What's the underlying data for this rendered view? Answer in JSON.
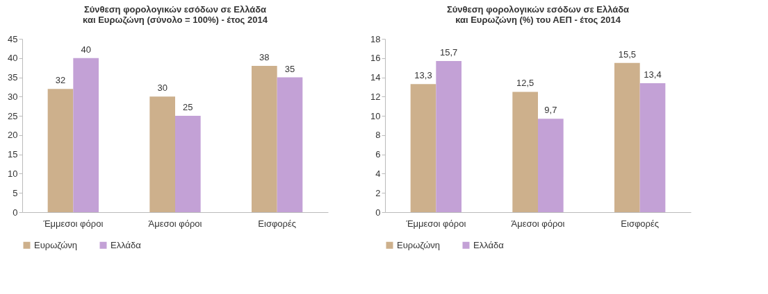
{
  "chart_data": [
    {
      "type": "bar",
      "title": "Σύνθεση  φορολογικών εσόδων σε Ελλάδα και Ευρωζώνη  (σύνολο = 100%) - έτος 2014",
      "categories": [
        "Έμμεσοι φόροι",
        "Άμεσοι φόροι",
        "Εισφορές"
      ],
      "series": [
        {
          "name": "Ευρωζώνη",
          "color": "#cdb08c",
          "values": [
            32,
            30,
            38
          ],
          "value_labels": [
            "32",
            "30",
            "38"
          ]
        },
        {
          "name": "Ελλάδα",
          "color": "#c3a1d6",
          "values": [
            40,
            25,
            35
          ],
          "value_labels": [
            "40",
            "25",
            "35"
          ]
        }
      ],
      "ylim": [
        0,
        45
      ],
      "yticks": [
        0,
        5,
        10,
        15,
        20,
        25,
        30,
        35,
        40,
        45
      ],
      "grid": false,
      "legend": "bottom"
    },
    {
      "type": "bar",
      "title": "Σύνθεση  φορολογικών εσόδων σε Ελλάδα και Ευρωζώνη (%) του ΑΕΠ - έτος 2014",
      "categories": [
        "Έμμεσοι φόροι",
        "Άμεσοι φόροι",
        "Εισφορές"
      ],
      "series": [
        {
          "name": "Ευρωζώνη",
          "color": "#cdb08c",
          "values": [
            13.3,
            12.5,
            15.5
          ],
          "value_labels": [
            "13,3",
            "12,5",
            "15,5"
          ]
        },
        {
          "name": "Ελλάδα",
          "color": "#c3a1d6",
          "values": [
            15.7,
            9.7,
            13.4
          ],
          "value_labels": [
            "15,7",
            "9,7",
            "13,4"
          ]
        }
      ],
      "ylim": [
        0,
        18
      ],
      "yticks": [
        0,
        2,
        4,
        6,
        8,
        10,
        12,
        14,
        16,
        18
      ],
      "grid": false,
      "legend": "bottom"
    }
  ]
}
